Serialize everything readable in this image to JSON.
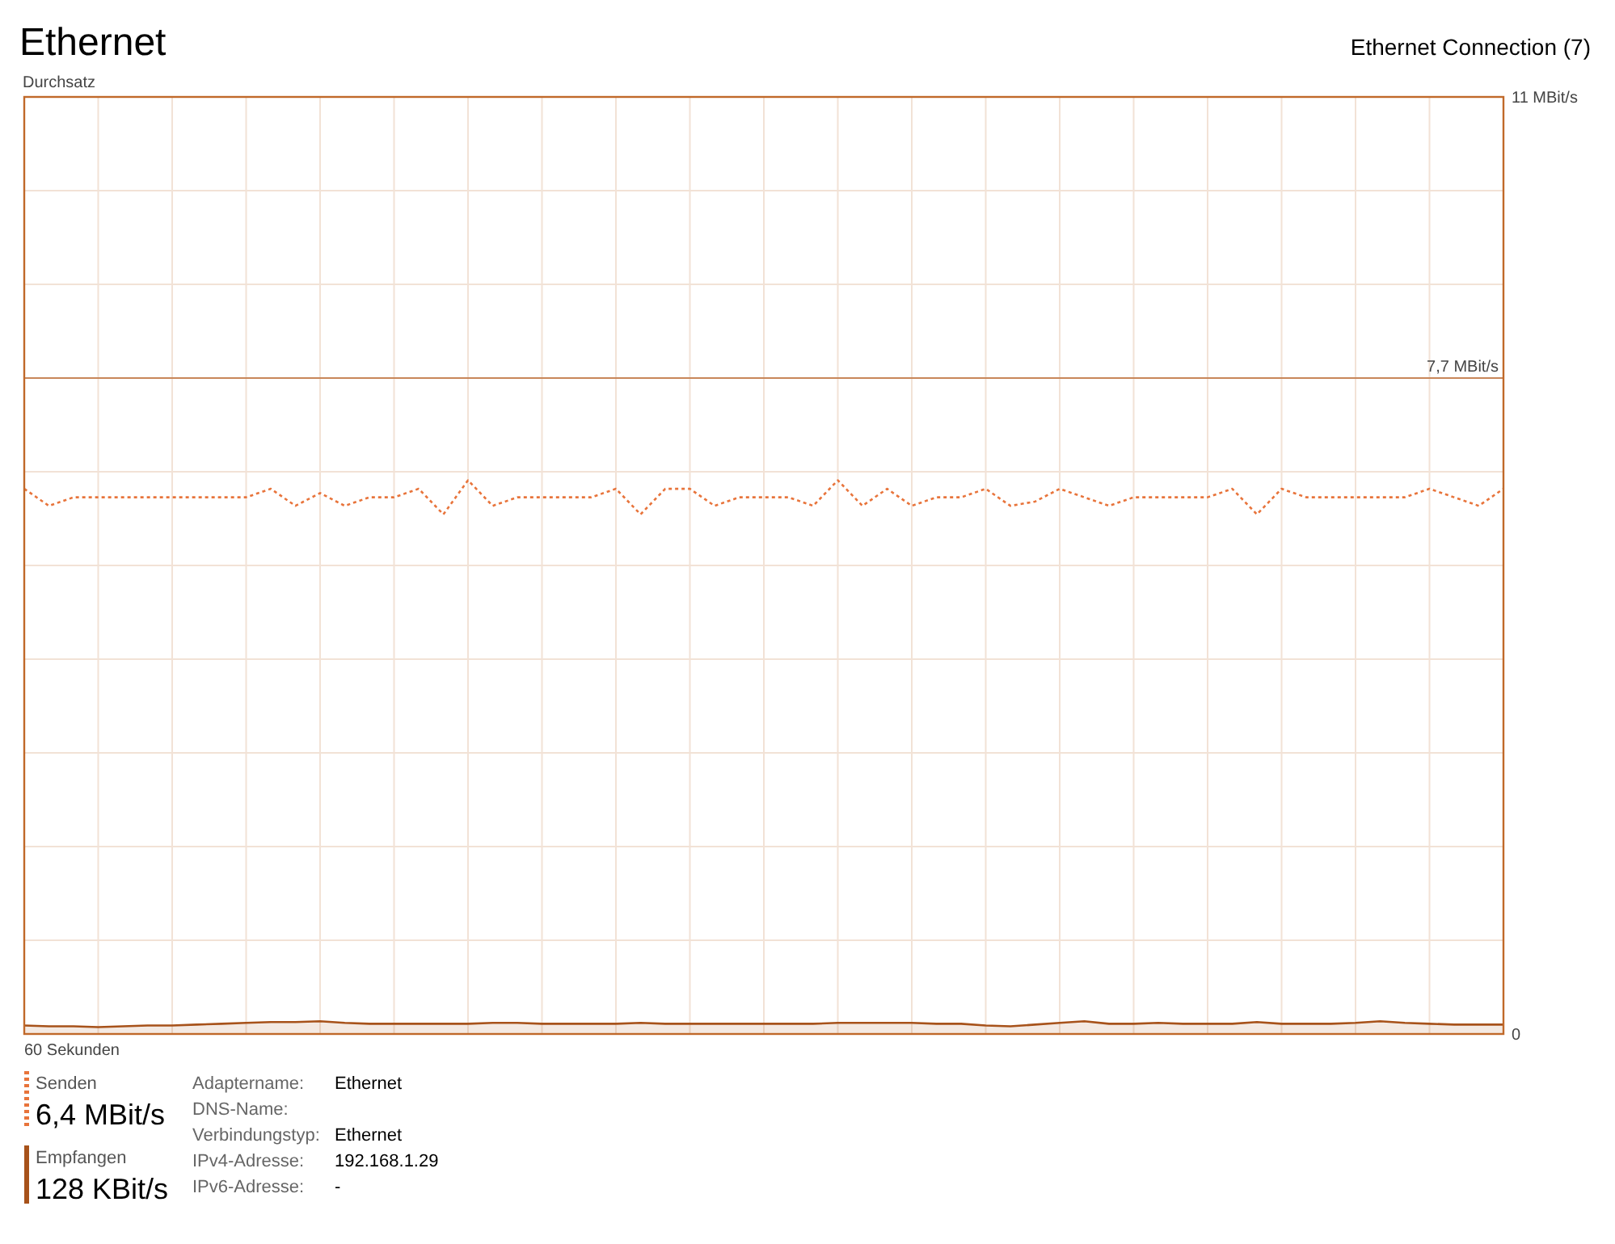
{
  "chart_data": {
    "type": "line",
    "title": "Ethernet",
    "subtitle": "Ethernet Connection (7)",
    "ylabel": "Durchsatz",
    "xlabel": "60 Sekunden",
    "categories": [
      null,
      null,
      null,
      null,
      null,
      null,
      null,
      null,
      null,
      null,
      null,
      null,
      null,
      null,
      null,
      null,
      null,
      null,
      null,
      null,
      null,
      null,
      null,
      null,
      null,
      null,
      null,
      null,
      null,
      null,
      null,
      null,
      null,
      null,
      null,
      null,
      null,
      null,
      null,
      null,
      null,
      null,
      null,
      null,
      null,
      null,
      null,
      null,
      null,
      null,
      null,
      null,
      null,
      null,
      null,
      null,
      null,
      null,
      null,
      null,
      null
    ],
    "series": [
      {
        "name": "Senden",
        "type": "line",
        "line_style": "dotted",
        "color": "#e8743b",
        "values": [
          6.4,
          6.2,
          6.3,
          6.3,
          6.3,
          6.3,
          6.3,
          6.3,
          6.3,
          6.3,
          6.4,
          6.2,
          6.35,
          6.2,
          6.3,
          6.3,
          6.4,
          6.1,
          6.5,
          6.2,
          6.3,
          6.3,
          6.3,
          6.3,
          6.4,
          6.1,
          6.4,
          6.4,
          6.2,
          6.3,
          6.3,
          6.3,
          6.2,
          6.5,
          6.2,
          6.4,
          6.2,
          6.3,
          6.3,
          6.4,
          6.2,
          6.25,
          6.4,
          6.3,
          6.2,
          6.3,
          6.3,
          6.3,
          6.3,
          6.4,
          6.1,
          6.4,
          6.3,
          6.3,
          6.3,
          6.3,
          6.3,
          6.4,
          6.3,
          6.2,
          6.4
        ]
      },
      {
        "name": "Empfangen",
        "type": "area",
        "line_style": "solid",
        "color": "#a7521a",
        "values": [
          0.1,
          0.09,
          0.09,
          0.08,
          0.09,
          0.1,
          0.1,
          0.11,
          0.12,
          0.13,
          0.14,
          0.14,
          0.15,
          0.13,
          0.12,
          0.12,
          0.12,
          0.12,
          0.12,
          0.13,
          0.13,
          0.12,
          0.12,
          0.12,
          0.12,
          0.13,
          0.12,
          0.12,
          0.12,
          0.12,
          0.12,
          0.12,
          0.12,
          0.13,
          0.13,
          0.13,
          0.13,
          0.12,
          0.12,
          0.1,
          0.09,
          0.11,
          0.13,
          0.15,
          0.12,
          0.12,
          0.13,
          0.12,
          0.12,
          0.12,
          0.14,
          0.12,
          0.12,
          0.12,
          0.13,
          0.15,
          0.13,
          0.12,
          0.11,
          0.11,
          0.11
        ]
      }
    ],
    "ylim": [
      0,
      11
    ],
    "yticks": [
      {
        "value": 0,
        "label": "0"
      },
      {
        "value": 1.1,
        "label": null
      },
      {
        "value": 2.2,
        "label": null
      },
      {
        "value": 3.3,
        "label": null
      },
      {
        "value": 4.4,
        "label": null
      },
      {
        "value": 5.5,
        "label": null
      },
      {
        "value": 6.6,
        "label": null
      },
      {
        "value": 7.7,
        "label": null
      },
      {
        "value": 8.8,
        "label": null
      },
      {
        "value": 9.9,
        "label": null
      },
      {
        "value": 11,
        "label": "11 MBit/s"
      }
    ],
    "ref_lines": [
      {
        "axis": "y",
        "value": 7.7,
        "label": "7,7 MBit/s",
        "color": "#c8875a"
      }
    ],
    "grid": true,
    "legend": "bottom left",
    "annotations": [
      "6,4 MBit/s",
      "128 KBit/s",
      "Adaptername:",
      "DNS-Name:",
      "Verbindungstyp:",
      "IPv4-Adresse:",
      "IPv6-Adresse:",
      "Ethernet",
      "Ethernet",
      "192.168.1.29",
      "-"
    ]
  }
}
